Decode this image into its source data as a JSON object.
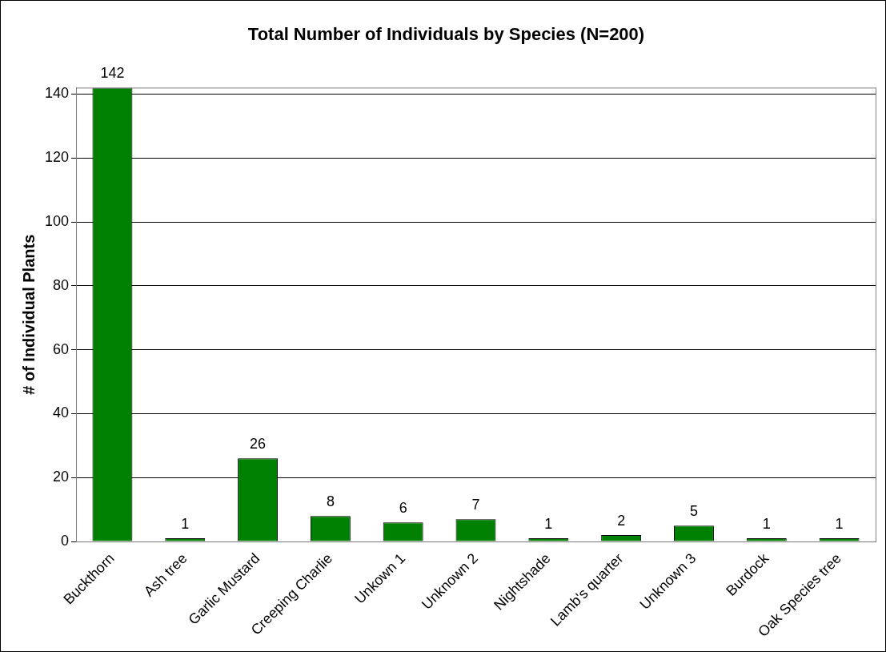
{
  "chart_data": {
    "type": "bar",
    "title": "Total Number of Individuals by Species (N=200)",
    "y_label": "# of Individual Plants",
    "categories": [
      "Buckthorn",
      "Ash tree",
      "Garlic Mustard",
      "Creeping Charlie",
      "Unkown 1",
      "Unknown 2",
      "Nightshade",
      "Lamb's quarter",
      "Unknown 3",
      "Burdock",
      "Oak Species tree"
    ],
    "values": [
      142,
      1,
      26,
      8,
      6,
      7,
      1,
      2,
      5,
      1,
      1
    ],
    "color": "#008000",
    "ylim": [
      0,
      142
    ],
    "yticks": [
      0,
      20,
      40,
      60,
      80,
      100,
      120,
      140
    ],
    "grid": true,
    "data_labels": true
  }
}
